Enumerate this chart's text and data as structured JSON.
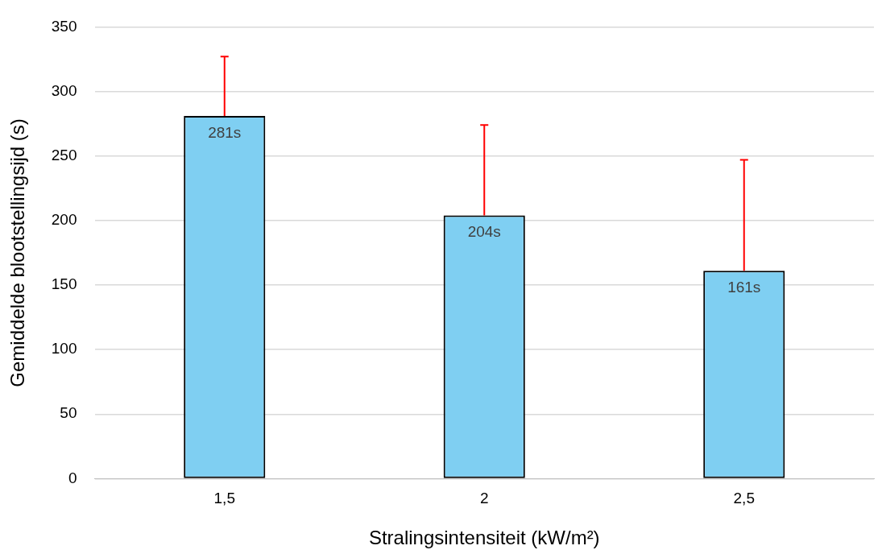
{
  "chart_data": {
    "type": "bar",
    "xlabel": "Stralingsintensiteit (kW/m²)",
    "ylabel": "Gemiddelde blootstellingsijd (s)",
    "categories": [
      "1,5",
      "2",
      "2,5"
    ],
    "series": [
      {
        "color": "#7fcff2",
        "values": [
          281,
          204,
          161
        ],
        "value_labels": [
          "281s",
          "204s",
          "161s"
        ],
        "errors": [
          [
            281,
            327
          ],
          [
            204,
            274
          ],
          [
            161,
            247
          ]
        ]
      }
    ],
    "ylim": [
      0,
      350
    ],
    "yticks": [
      0,
      50,
      100,
      150,
      200,
      250,
      300,
      350
    ],
    "grid": "y",
    "legend": false
  }
}
